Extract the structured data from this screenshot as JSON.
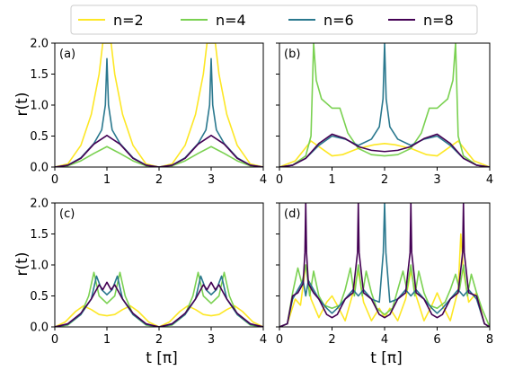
{
  "legend": [
    {
      "label": "n=2",
      "color": "#fde725"
    },
    {
      "label": "n=4",
      "color": "#7ad151"
    },
    {
      "label": "n=6",
      "color": "#2a788e"
    },
    {
      "label": "n=8",
      "color": "#440154"
    }
  ],
  "axes": {
    "ylabel": "r(t)",
    "xlabel": "t [π]",
    "yticks": [
      0.0,
      0.5,
      1.0,
      1.5,
      2.0
    ],
    "ytick_labels": [
      "0.0",
      "0.5",
      "1.0",
      "1.5",
      "2.0"
    ],
    "xticks_short": [
      0,
      1,
      2,
      3,
      4
    ],
    "xticks_long": [
      0,
      2,
      4,
      6,
      8
    ]
  },
  "chart_data": [
    {
      "type": "line",
      "panel": "(a)",
      "xlim": [
        0,
        4
      ],
      "ylim": [
        0,
        2
      ],
      "series": [
        {
          "name": "n=2",
          "x": [
            0,
            0.25,
            0.5,
            0.7,
            0.85,
            0.92,
            1.08,
            1.15,
            1.3,
            1.5,
            1.75,
            2,
            2.25,
            2.5,
            2.7,
            2.85,
            2.92,
            3.08,
            3.15,
            3.3,
            3.5,
            3.75,
            4
          ],
          "y": [
            0,
            0.05,
            0.35,
            0.85,
            1.5,
            2.0,
            2.0,
            1.5,
            0.85,
            0.35,
            0.05,
            0,
            0.05,
            0.35,
            0.85,
            1.5,
            2.0,
            2.0,
            1.5,
            0.85,
            0.35,
            0.05,
            0
          ]
        },
        {
          "name": "n=4",
          "x": [
            0,
            0.25,
            0.5,
            0.75,
            1,
            1.25,
            1.5,
            1.75,
            2,
            2.25,
            2.5,
            2.75,
            3,
            3.25,
            3.5,
            3.75,
            4
          ],
          "y": [
            0,
            0.02,
            0.1,
            0.22,
            0.33,
            0.22,
            0.1,
            0.02,
            0,
            0.02,
            0.1,
            0.22,
            0.33,
            0.22,
            0.1,
            0.02,
            0
          ]
        },
        {
          "name": "n=6",
          "x": [
            0,
            0.25,
            0.5,
            0.75,
            0.9,
            0.97,
            1,
            1.03,
            1.1,
            1.25,
            1.5,
            1.75,
            2,
            2.25,
            2.5,
            2.75,
            2.9,
            2.97,
            3,
            3.03,
            3.1,
            3.25,
            3.5,
            3.75,
            4
          ],
          "y": [
            0,
            0.03,
            0.15,
            0.38,
            0.6,
            1.0,
            1.75,
            1.0,
            0.6,
            0.38,
            0.15,
            0.03,
            0,
            0.03,
            0.15,
            0.38,
            0.6,
            1.0,
            1.75,
            1.0,
            0.6,
            0.38,
            0.15,
            0.03,
            0
          ]
        },
        {
          "name": "n=8",
          "x": [
            0,
            0.25,
            0.5,
            0.75,
            1,
            1.25,
            1.5,
            1.75,
            2,
            2.25,
            2.5,
            2.75,
            3,
            3.25,
            3.5,
            3.75,
            4
          ],
          "y": [
            0,
            0.03,
            0.14,
            0.37,
            0.51,
            0.37,
            0.14,
            0.03,
            0,
            0.03,
            0.14,
            0.37,
            0.51,
            0.37,
            0.14,
            0.03,
            0
          ]
        }
      ]
    },
    {
      "type": "line",
      "panel": "(b)",
      "xlim": [
        0,
        4
      ],
      "ylim": [
        0,
        2
      ],
      "series": [
        {
          "name": "n=2",
          "x": [
            0,
            0.3,
            0.6,
            0.8,
            1,
            1.2,
            1.5,
            1.8,
            2,
            2.2,
            2.5,
            2.8,
            3,
            3.2,
            3.4,
            3.7,
            4
          ],
          "y": [
            0,
            0.1,
            0.42,
            0.3,
            0.18,
            0.2,
            0.3,
            0.36,
            0.38,
            0.36,
            0.3,
            0.2,
            0.18,
            0.3,
            0.42,
            0.1,
            0
          ]
        },
        {
          "name": "n=4",
          "x": [
            0,
            0.25,
            0.5,
            0.6,
            0.65,
            0.7,
            0.8,
            1,
            1.15,
            1.3,
            1.5,
            1.75,
            2,
            2.25,
            2.5,
            2.7,
            2.85,
            3,
            3.2,
            3.3,
            3.35,
            3.4,
            3.5,
            3.75,
            4
          ],
          "y": [
            0,
            0.03,
            0.18,
            0.5,
            2.0,
            1.4,
            1.1,
            0.95,
            0.95,
            0.55,
            0.3,
            0.2,
            0.18,
            0.2,
            0.3,
            0.55,
            0.95,
            0.95,
            1.1,
            1.4,
            2.0,
            0.5,
            0.18,
            0.03,
            0
          ]
        },
        {
          "name": "n=6",
          "x": [
            0,
            0.25,
            0.5,
            0.75,
            1,
            1.25,
            1.5,
            1.75,
            1.9,
            1.97,
            2,
            2.03,
            2.1,
            2.25,
            2.5,
            2.75,
            3,
            3.25,
            3.5,
            3.75,
            4
          ],
          "y": [
            0,
            0.03,
            0.14,
            0.35,
            0.5,
            0.45,
            0.35,
            0.45,
            0.65,
            1.1,
            2.0,
            1.1,
            0.65,
            0.45,
            0.35,
            0.45,
            0.5,
            0.35,
            0.14,
            0.03,
            0
          ]
        },
        {
          "name": "n=8",
          "x": [
            0,
            0.25,
            0.5,
            0.75,
            1,
            1.25,
            1.5,
            1.75,
            2,
            2.25,
            2.5,
            2.75,
            3,
            3.25,
            3.5,
            3.75,
            4
          ],
          "y": [
            0,
            0.03,
            0.14,
            0.38,
            0.53,
            0.46,
            0.33,
            0.27,
            0.25,
            0.27,
            0.33,
            0.46,
            0.53,
            0.38,
            0.14,
            0.03,
            0
          ]
        }
      ]
    },
    {
      "type": "line",
      "panel": "(c)",
      "xlim": [
        0,
        4
      ],
      "ylim": [
        0,
        2
      ],
      "series": [
        {
          "name": "n=2",
          "x": [
            0,
            0.2,
            0.4,
            0.55,
            0.7,
            0.85,
            1,
            1.15,
            1.3,
            1.45,
            1.6,
            1.8,
            2,
            2.2,
            2.4,
            2.55,
            2.7,
            2.85,
            3,
            3.15,
            3.3,
            3.45,
            3.6,
            3.8,
            4
          ],
          "y": [
            0,
            0.08,
            0.25,
            0.34,
            0.28,
            0.2,
            0.18,
            0.2,
            0.28,
            0.34,
            0.25,
            0.08,
            0,
            0.08,
            0.25,
            0.34,
            0.28,
            0.2,
            0.18,
            0.2,
            0.28,
            0.34,
            0.25,
            0.08,
            0
          ]
        },
        {
          "name": "n=4",
          "x": [
            0,
            0.25,
            0.5,
            0.65,
            0.75,
            0.85,
            1,
            1.15,
            1.25,
            1.35,
            1.5,
            1.75,
            2,
            2.25,
            2.5,
            2.65,
            2.75,
            2.85,
            3,
            3.15,
            3.25,
            3.35,
            3.5,
            3.75,
            4
          ],
          "y": [
            0,
            0.03,
            0.2,
            0.5,
            0.88,
            0.5,
            0.38,
            0.5,
            0.88,
            0.5,
            0.2,
            0.03,
            0,
            0.03,
            0.2,
            0.5,
            0.88,
            0.5,
            0.38,
            0.5,
            0.88,
            0.5,
            0.2,
            0.03,
            0
          ]
        },
        {
          "name": "n=6",
          "x": [
            0,
            0.25,
            0.5,
            0.7,
            0.8,
            0.9,
            1,
            1.1,
            1.2,
            1.3,
            1.5,
            1.75,
            2,
            2.25,
            2.5,
            2.7,
            2.8,
            2.9,
            3,
            3.1,
            3.2,
            3.3,
            3.5,
            3.75,
            4
          ],
          "y": [
            0,
            0.04,
            0.2,
            0.45,
            0.82,
            0.6,
            0.52,
            0.6,
            0.82,
            0.45,
            0.2,
            0.04,
            0,
            0.04,
            0.2,
            0.45,
            0.82,
            0.6,
            0.52,
            0.6,
            0.82,
            0.45,
            0.2,
            0.04,
            0
          ]
        },
        {
          "name": "n=8",
          "x": [
            0,
            0.25,
            0.5,
            0.7,
            0.85,
            0.92,
            1,
            1.08,
            1.15,
            1.3,
            1.5,
            1.75,
            2,
            2.25,
            2.5,
            2.7,
            2.85,
            2.92,
            3,
            3.08,
            3.15,
            3.3,
            3.5,
            3.75,
            4
          ],
          "y": [
            0,
            0.05,
            0.22,
            0.45,
            0.68,
            0.6,
            0.72,
            0.6,
            0.68,
            0.45,
            0.22,
            0.05,
            0,
            0.05,
            0.22,
            0.45,
            0.68,
            0.6,
            0.72,
            0.6,
            0.68,
            0.45,
            0.22,
            0.05,
            0
          ]
        }
      ]
    },
    {
      "type": "line",
      "panel": "(d)",
      "xlim": [
        0,
        8
      ],
      "ylim": [
        0,
        2
      ],
      "series": [
        {
          "name": "n=2",
          "x": [
            0,
            0.3,
            0.6,
            0.8,
            1,
            1.2,
            1.5,
            1.8,
            2,
            2.2,
            2.5,
            2.8,
            3,
            3.2,
            3.5,
            3.8,
            4,
            4.2,
            4.5,
            4.8,
            5,
            5.2,
            5.5,
            5.8,
            6,
            6.2,
            6.5,
            6.8,
            6.9,
            7,
            7.2,
            7.5,
            7.8,
            8
          ],
          "y": [
            0,
            0.05,
            0.45,
            0.35,
            1.0,
            0.45,
            0.15,
            0.4,
            0.5,
            0.35,
            0.1,
            0.55,
            0.9,
            0.4,
            0.1,
            0.3,
            0.15,
            0.3,
            0.1,
            0.45,
            0.9,
            0.5,
            0.1,
            0.35,
            0.55,
            0.35,
            0.1,
            0.6,
            1.5,
            0.9,
            0.4,
            0.55,
            0.05,
            0
          ]
        },
        {
          "name": "n=4",
          "x": [
            0,
            0.3,
            0.5,
            0.7,
            0.85,
            1,
            1.15,
            1.3,
            1.5,
            1.7,
            2,
            2.3,
            2.5,
            2.7,
            2.85,
            3,
            3.15,
            3.3,
            3.5,
            3.7,
            4,
            4.3,
            4.5,
            4.7,
            4.85,
            5,
            5.15,
            5.3,
            5.5,
            5.7,
            6,
            6.3,
            6.5,
            6.7,
            6.85,
            7,
            7.15,
            7.3,
            7.5,
            7.7,
            8
          ],
          "y": [
            0,
            0.05,
            0.55,
            0.95,
            0.7,
            1.0,
            0.5,
            0.9,
            0.5,
            0.35,
            0.3,
            0.35,
            0.6,
            0.95,
            0.5,
            1.0,
            0.5,
            0.9,
            0.55,
            0.3,
            0.2,
            0.3,
            0.6,
            0.9,
            0.6,
            1.0,
            0.5,
            0.9,
            0.55,
            0.35,
            0.3,
            0.4,
            0.6,
            0.85,
            0.6,
            1.0,
            0.5,
            0.85,
            0.55,
            0.3,
            0
          ]
        },
        {
          "name": "n=6",
          "x": [
            0,
            0.3,
            0.5,
            0.7,
            0.9,
            1,
            1.1,
            1.3,
            1.5,
            1.8,
            2,
            2.2,
            2.5,
            2.8,
            3,
            3.2,
            3.5,
            3.8,
            3.95,
            4,
            4.05,
            4.2,
            4.5,
            4.8,
            5,
            5.2,
            5.5,
            5.8,
            6,
            6.2,
            6.5,
            6.8,
            7,
            7.2,
            7.5,
            7.8,
            8
          ],
          "y": [
            0,
            0.05,
            0.45,
            0.6,
            0.75,
            0.5,
            0.75,
            0.6,
            0.45,
            0.3,
            0.22,
            0.3,
            0.45,
            0.6,
            0.5,
            0.6,
            0.45,
            0.4,
            1.2,
            2.0,
            1.2,
            0.4,
            0.45,
            0.6,
            0.5,
            0.6,
            0.45,
            0.3,
            0.22,
            0.3,
            0.45,
            0.6,
            0.5,
            0.6,
            0.45,
            0.05,
            0
          ]
        },
        {
          "name": "n=8",
          "x": [
            0,
            0.3,
            0.5,
            0.7,
            0.9,
            0.97,
            1,
            1.03,
            1.1,
            1.3,
            1.5,
            1.8,
            2,
            2.2,
            2.5,
            2.8,
            2.97,
            3,
            3.03,
            3.2,
            3.5,
            3.8,
            4,
            4.2,
            4.5,
            4.8,
            4.97,
            5,
            5.03,
            5.2,
            5.5,
            5.8,
            6,
            6.2,
            6.5,
            6.8,
            6.97,
            7,
            7.03,
            7.2,
            7.5,
            7.8,
            8
          ],
          "y": [
            0,
            0.05,
            0.5,
            0.55,
            0.7,
            1.2,
            2.0,
            1.2,
            0.7,
            0.55,
            0.45,
            0.2,
            0.15,
            0.2,
            0.45,
            0.55,
            1.2,
            2.0,
            1.2,
            0.55,
            0.45,
            0.2,
            0.15,
            0.2,
            0.45,
            0.55,
            1.2,
            2.0,
            1.2,
            0.55,
            0.45,
            0.2,
            0.15,
            0.2,
            0.45,
            0.55,
            1.2,
            2.0,
            1.2,
            0.55,
            0.5,
            0.05,
            0
          ]
        }
      ]
    }
  ]
}
